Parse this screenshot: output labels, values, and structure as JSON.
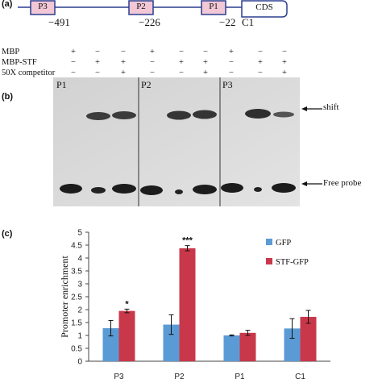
{
  "panel_a": {
    "label": "(a)",
    "boxes": [
      {
        "name": "P3",
        "position": "−491"
      },
      {
        "name": "P2",
        "position": "−226"
      },
      {
        "name": "P1",
        "position": "−22"
      }
    ],
    "cds_label": "CDS",
    "c1_label": "C1",
    "colors": {
      "box_fill": "#f2c7d6",
      "box_stroke": "#2b3f8f",
      "line": "#2b3f8f"
    }
  },
  "panel_b": {
    "label": "(b)",
    "rows": [
      {
        "label": "MBP",
        "cells": [
          "+",
          "−",
          "−",
          "+",
          "−",
          "−",
          "+",
          "−",
          "−"
        ]
      },
      {
        "label": "MBP-STF",
        "cells": [
          "−",
          "+",
          "+",
          "−",
          "+",
          "+",
          "−",
          "+",
          "+"
        ]
      },
      {
        "label": "50X competitor",
        "cells": [
          "−",
          "−",
          "+",
          "−",
          "−",
          "+",
          "−",
          "−",
          "+"
        ]
      }
    ],
    "blot_panels": [
      "P1",
      "P2",
      "P3"
    ],
    "shift_label": "shift",
    "free_probe_label": "Free probe"
  },
  "panel_c": {
    "label": "(c)"
  },
  "chart_data": {
    "type": "bar",
    "categories": [
      "P3",
      "P2",
      "P1",
      "C1"
    ],
    "series": [
      {
        "name": "GFP",
        "values": [
          1.28,
          1.42,
          1.0,
          1.27
        ],
        "errors": [
          0.3,
          0.38,
          0.02,
          0.38
        ],
        "color": "#5b9bd5"
      },
      {
        "name": "STF-GFP",
        "values": [
          1.95,
          4.38,
          1.1,
          1.72
        ],
        "errors": [
          0.07,
          0.1,
          0.1,
          0.25
        ],
        "color": "#c9384a"
      }
    ],
    "significance": [
      "*",
      "***",
      "",
      ""
    ],
    "ylabel": "Promoter  enrichment",
    "ylim": [
      0,
      5
    ],
    "yticks": [
      "0",
      "0.5",
      "1",
      "1.5",
      "2",
      "2.5",
      "3",
      "3.5",
      "4",
      "4.5",
      "5"
    ],
    "legend": "top-right",
    "grid": false
  }
}
